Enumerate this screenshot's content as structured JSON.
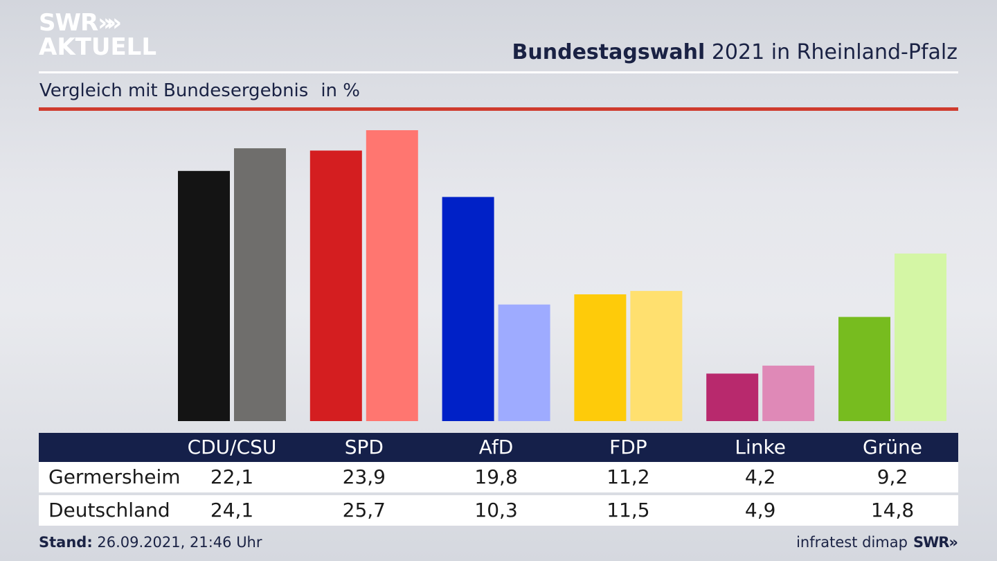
{
  "branding": {
    "logo_line1": "SWR",
    "logo_chevrons": "»",
    "logo_line2": "AKTUELL",
    "footer_logo": "SWR»"
  },
  "header": {
    "title_bold": "Bundestagswahl",
    "title_rest": "2021 in Rheinland-Pfalz",
    "subtitle": "Vergleich mit Bundesergebnis",
    "unit": "in %"
  },
  "footer": {
    "stand_label": "Stand:",
    "stand_value": "26.09.2021, 21:46 Uhr",
    "source": "infratest dimap"
  },
  "colors": {
    "title_text": "#1a2244",
    "accent_rule": "#cf3b2e",
    "table_header_bg": "#15204a"
  },
  "chart_data": {
    "type": "bar",
    "categories": [
      "CDU/CSU",
      "SPD",
      "AfD",
      "FDP",
      "Linke",
      "Grüne"
    ],
    "series": [
      {
        "name": "Germersheim",
        "values": [
          22.1,
          23.9,
          19.8,
          11.2,
          4.2,
          9.2
        ],
        "colors": [
          "#141414",
          "#d41e20",
          "#0021c7",
          "#fecb0a",
          "#b8296d",
          "#77bc1f"
        ]
      },
      {
        "name": "Deutschland",
        "values": [
          24.1,
          25.7,
          10.3,
          11.5,
          4.9,
          14.8
        ],
        "colors": [
          "#6f6e6c",
          "#ff7670",
          "#9eabff",
          "#ffe06f",
          "#df89b7",
          "#d4f6a5"
        ]
      }
    ],
    "value_labels": {
      "Germersheim": [
        "22,1",
        "23,9",
        "19,8",
        "11,2",
        "4,2",
        "9,2"
      ],
      "Deutschland": [
        "24,1",
        "25,7",
        "10,3",
        "11,5",
        "4,9",
        "14,8"
      ]
    },
    "ylim": [
      0,
      25.7
    ],
    "grid": false,
    "legend": "none"
  }
}
